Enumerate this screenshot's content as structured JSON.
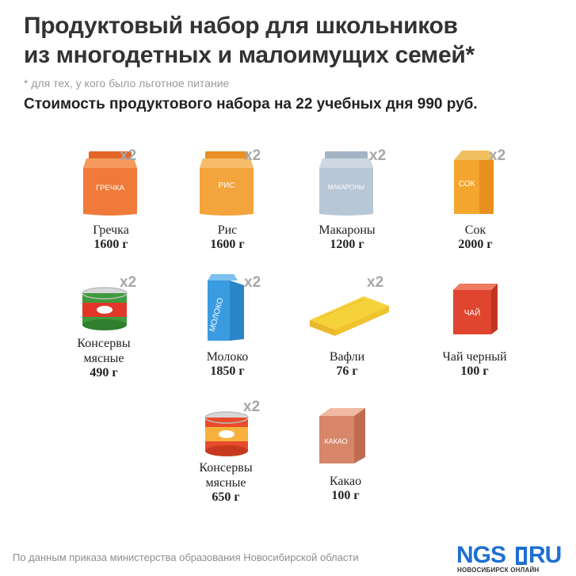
{
  "header": {
    "title_line1": "Продуктовый набор для школьников",
    "title_line2": "из многодетных и малоимущих семей*",
    "footnote": "* для тех, у кого было льготное питание",
    "cost": "Стоимость продуктового набора на 22 учебных дня 990 руб."
  },
  "items": [
    {
      "name": "Гречка",
      "weight": "1600 г",
      "multiplier": "x2",
      "package_label": "ГРЕЧКА",
      "icon": "buckwheat-bag-icon",
      "color": "#ef7a3a"
    },
    {
      "name": "Рис",
      "weight": "1600 г",
      "multiplier": "x2",
      "package_label": "РИС",
      "icon": "rice-bag-icon",
      "color": "#f3a43c"
    },
    {
      "name": "Макароны",
      "weight": "1200 г",
      "multiplier": "x2",
      "package_label": "МАКАРОНЫ",
      "icon": "pasta-bag-icon",
      "color": "#b8c7d6"
    },
    {
      "name": "Сок",
      "weight": "2000 г",
      "multiplier": "x2",
      "package_label": "СОК",
      "icon": "juice-carton-icon",
      "color": "#f4a52e"
    },
    {
      "name_line1": "Консервы",
      "name_line2": "мясные",
      "weight": "490 г",
      "multiplier": "x2",
      "icon": "meat-can-green-icon",
      "color": "#3e9b3c"
    },
    {
      "name": "Молоко",
      "weight": "1850 г",
      "multiplier": "x2",
      "package_label": "МОЛОКО",
      "icon": "milk-carton-icon",
      "color": "#3a9be0"
    },
    {
      "name": "Вафли",
      "weight": "76 г",
      "multiplier": "x2",
      "icon": "wafer-icon",
      "color": "#f6d23a"
    },
    {
      "name": "Чай черный",
      "weight": "100 г",
      "package_label": "ЧАЙ",
      "icon": "tea-box-icon",
      "color": "#e0452f"
    },
    {
      "name_line1": "Консервы",
      "name_line2": "мясные",
      "weight": "650 г",
      "multiplier": "x2",
      "icon": "meat-can-orange-icon",
      "color": "#e84b2c"
    },
    {
      "name": "Какао",
      "weight": "100 г",
      "package_label": "КАКАО",
      "icon": "cocoa-box-icon",
      "color": "#d7866a"
    }
  ],
  "footer": {
    "source": "По данным приказа министерства образования Новосибирской области",
    "logo_main": "NGS",
    "logo_tld": "RU",
    "logo_sub": "НОВОСИБИРСК ОНЛАЙН"
  }
}
